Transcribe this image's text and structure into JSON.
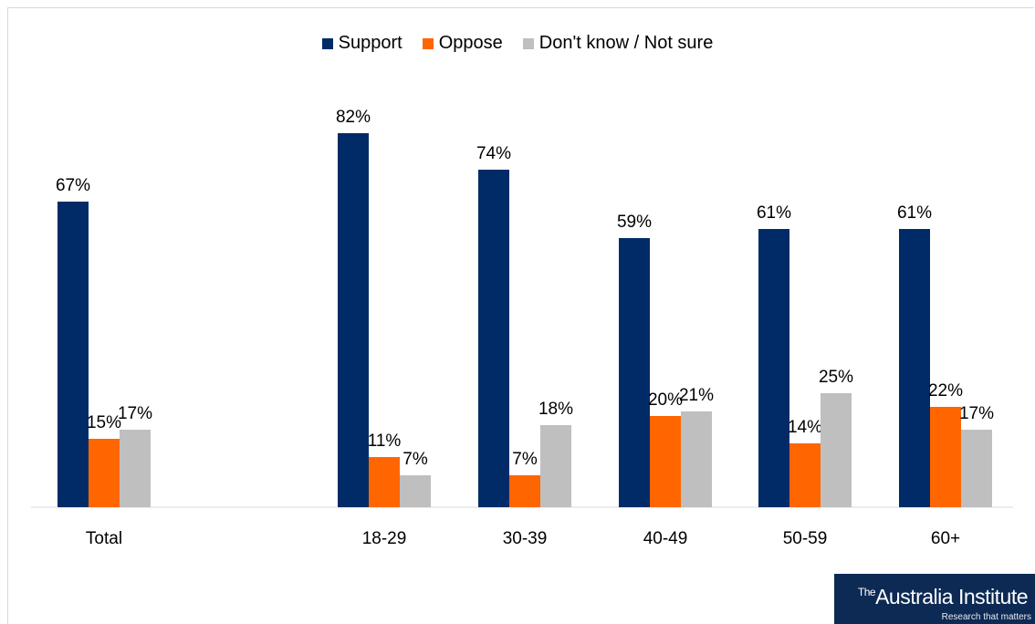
{
  "chart_data": {
    "type": "bar",
    "title": "",
    "xlabel": "",
    "ylabel": "",
    "ylim": [
      0,
      100
    ],
    "grid": false,
    "legend_position": "top",
    "categories": [
      "Total",
      "18-29",
      "30-39",
      "40-49",
      "50-59",
      "60+"
    ],
    "series": [
      {
        "name": "Support",
        "color": "#002b67",
        "values": [
          67,
          82,
          74,
          59,
          61,
          61
        ]
      },
      {
        "name": "Oppose",
        "color": "#ff6600",
        "values": [
          15,
          11,
          7,
          20,
          14,
          22
        ]
      },
      {
        "name": "Don't know / Not sure",
        "color": "#bfbfbf",
        "values": [
          17,
          7,
          18,
          21,
          25,
          17
        ]
      }
    ],
    "value_suffix": "%"
  },
  "logo": {
    "the": "The",
    "name": "Australia Institute",
    "tagline": "Research that matters"
  }
}
